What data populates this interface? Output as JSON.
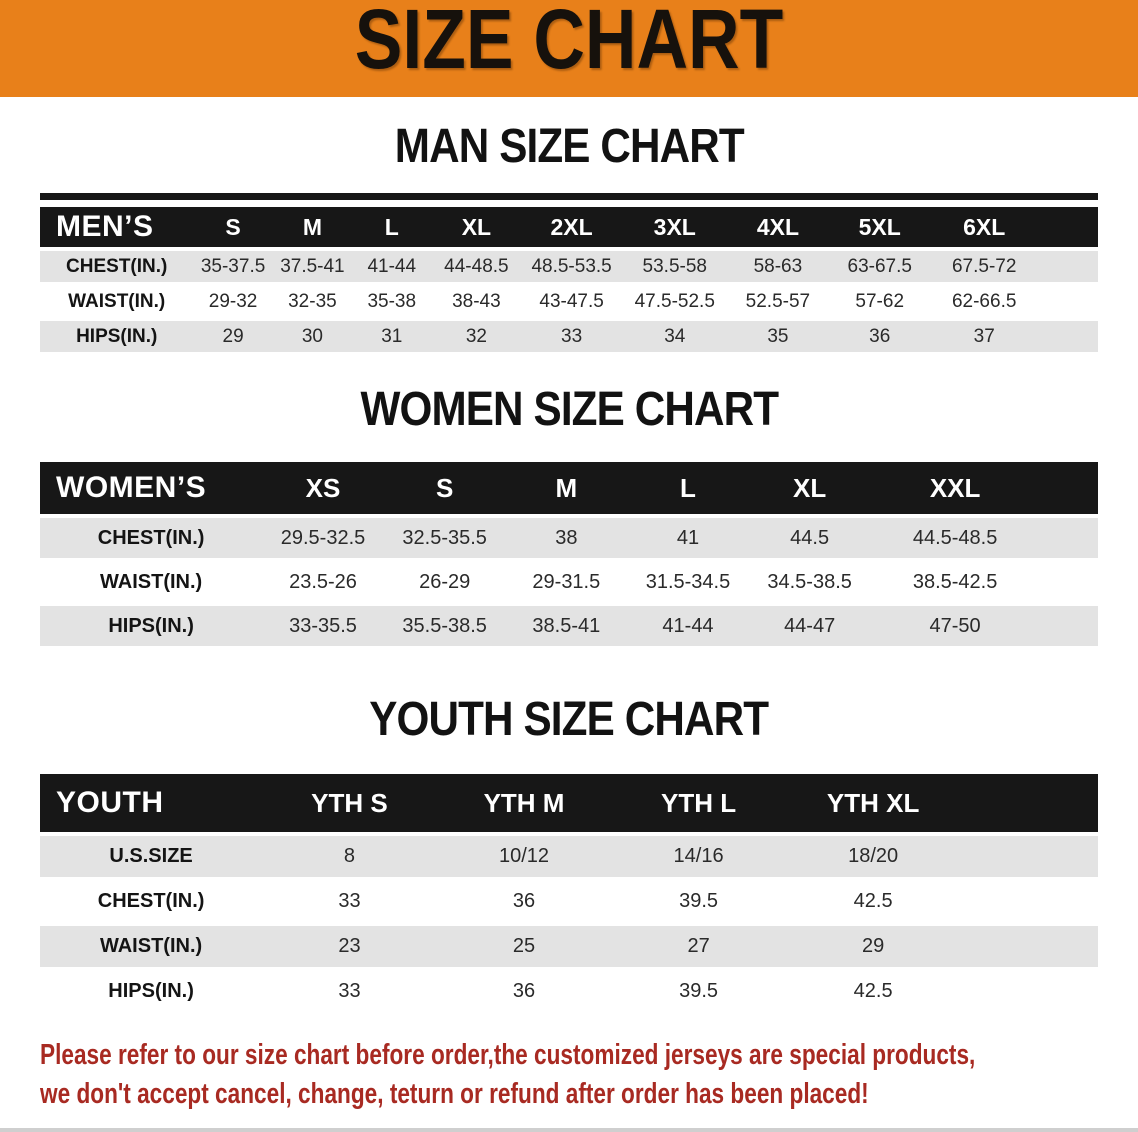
{
  "banner": {
    "title": "SIZE CHART"
  },
  "sections": [
    {
      "heading": "MAN SIZE CHART",
      "table": {
        "header_label": "MEN’S",
        "columns": [
          "S",
          "M",
          "L",
          "XL",
          "2XL",
          "3XL",
          "4XL",
          "5XL",
          "6XL"
        ],
        "rows": [
          {
            "label": "CHEST(IN.)",
            "values": [
              "35-37.5",
              "37.5-41",
              "41-44",
              "44-48.5",
              "48.5-53.5",
              "53.5-58",
              "58-63",
              "63-67.5",
              "67.5-72"
            ]
          },
          {
            "label": "WAIST(IN.)",
            "values": [
              "29-32",
              "32-35",
              "35-38",
              "38-43",
              "43-47.5",
              "47.5-52.5",
              "52.5-57",
              "57-62",
              "62-66.5"
            ]
          },
          {
            "label": "HIPS(IN.)",
            "values": [
              "29",
              "30",
              "31",
              "32",
              "33",
              "34",
              "35",
              "36",
              "37"
            ]
          }
        ]
      }
    },
    {
      "heading": "WOMEN SIZE CHART",
      "table": {
        "header_label": "WOMEN’S",
        "columns": [
          "XS",
          "S",
          "M",
          "L",
          "XL",
          "XXL"
        ],
        "rows": [
          {
            "label": "CHEST(IN.)",
            "values": [
              "29.5-32.5",
              "32.5-35.5",
              "38",
              "41",
              "44.5",
              "44.5-48.5"
            ]
          },
          {
            "label": "WAIST(IN.)",
            "values": [
              "23.5-26",
              "26-29",
              "29-31.5",
              "31.5-34.5",
              "34.5-38.5",
              "38.5-42.5"
            ]
          },
          {
            "label": "HIPS(IN.)",
            "values": [
              "33-35.5",
              "35.5-38.5",
              "38.5-41",
              "41-44",
              "44-47",
              "47-50"
            ]
          }
        ]
      }
    },
    {
      "heading": "YOUTH SIZE CHART",
      "table": {
        "header_label": "YOUTH",
        "columns": [
          "YTH S",
          "YTH M",
          "YTH L",
          "YTH XL"
        ],
        "rows": [
          {
            "label": "U.S.SIZE",
            "values": [
              "8",
              "10/12",
              "14/16",
              "18/20"
            ]
          },
          {
            "label": "CHEST(IN.)",
            "values": [
              "33",
              "36",
              "39.5",
              "42.5"
            ]
          },
          {
            "label": "WAIST(IN.)",
            "values": [
              "23",
              "25",
              "27",
              "29"
            ]
          },
          {
            "label": "HIPS(IN.)",
            "values": [
              "33",
              "36",
              "39.5",
              "42.5"
            ]
          }
        ]
      }
    }
  ],
  "footer": {
    "line1": "Please refer to our size chart before order,the customized jerseys are special products,",
    "line2": "we don't accept cancel, change, teturn or refund after order has been placed!"
  },
  "colors": {
    "banner_bg": "#E8801A",
    "table_header_bg": "#171717",
    "row_stripe": "#E3E3E3",
    "footer_text": "#A82A22"
  }
}
